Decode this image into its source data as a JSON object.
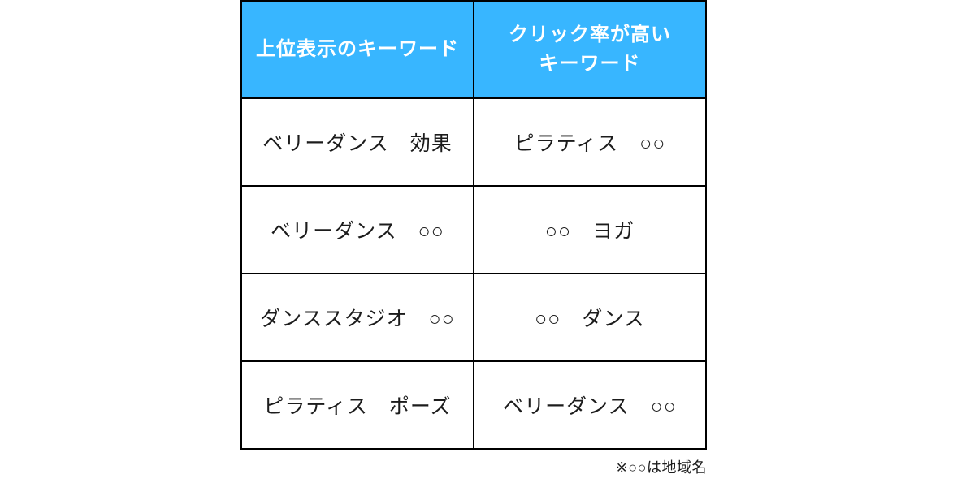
{
  "theme": {
    "header_bg": "#38b6ff",
    "header_text": "#ffffff",
    "border": "#000000",
    "body_text": "#1c1c1c",
    "background": "#ffffff"
  },
  "chart_data": {
    "type": "table",
    "title": "",
    "columns": [
      "上位表示のキーワード",
      "クリック率が高いキーワード"
    ],
    "header_lines": [
      [
        "上位表示のキーワード"
      ],
      [
        "クリック率が高い",
        "キーワード"
      ]
    ],
    "rows": [
      [
        "ベリーダンス　効果",
        "ピラティス　○○"
      ],
      [
        "ベリーダンス　○○",
        "○○　ヨガ"
      ],
      [
        "ダンススタジオ　○○",
        "○○　ダンス"
      ],
      [
        "ピラティス　ポーズ",
        "ベリーダンス　○○"
      ]
    ],
    "footnote": "※○○は地域名",
    "layout": {
      "header_fill": "blue",
      "grid": "all-borders",
      "footnote_position": "bottom-right"
    }
  }
}
